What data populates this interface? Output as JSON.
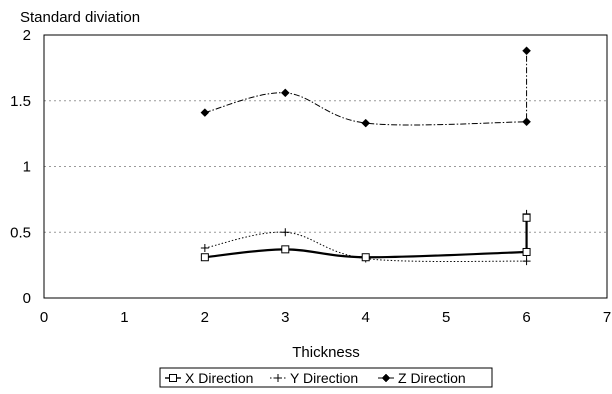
{
  "chart_data": {
    "type": "line",
    "ylabel": "Standard diviation",
    "xlabel": "Thickness",
    "xlim": [
      0,
      7
    ],
    "ylim": [
      0,
      2
    ],
    "x_ticks": [
      0,
      1,
      2,
      3,
      4,
      5,
      6,
      7
    ],
    "y_ticks": [
      0,
      0.5,
      1,
      1.5,
      2
    ],
    "grid": "horizontal dotted",
    "legend_placement": "bottom",
    "series": [
      {
        "name": "X Direction",
        "marker": "square",
        "line_style": "solid-thick",
        "color": "#000000",
        "x": [
          2,
          3,
          4,
          6,
          6
        ],
        "y": [
          0.31,
          0.37,
          0.31,
          0.35,
          0.61
        ]
      },
      {
        "name": "Y Direction",
        "marker": "plus",
        "line_style": "dotted",
        "color": "#000000",
        "x": [
          2,
          3,
          4,
          6,
          6
        ],
        "y": [
          0.38,
          0.5,
          0.3,
          0.28,
          0.64
        ]
      },
      {
        "name": "Z Direction",
        "marker": "diamond",
        "line_style": "dash-dot",
        "color": "#000000",
        "x": [
          2,
          3,
          4,
          6,
          6
        ],
        "y": [
          1.41,
          1.56,
          1.33,
          1.34,
          1.88
        ]
      }
    ]
  }
}
